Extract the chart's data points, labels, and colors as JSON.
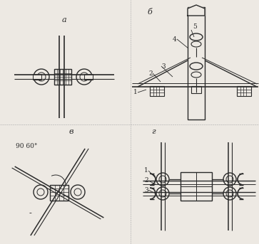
{
  "bg_color": "#ede9e3",
  "line_color": "#2a2a2a",
  "title_a": "а",
  "title_b": "б",
  "title_v": "в",
  "title_g": "г",
  "label1": "1",
  "label2": "2",
  "label3": "3",
  "label4": "4",
  "label5": "5",
  "angle_text": "90 60°",
  "figsize": [
    3.63,
    3.43
  ],
  "dpi": 100
}
